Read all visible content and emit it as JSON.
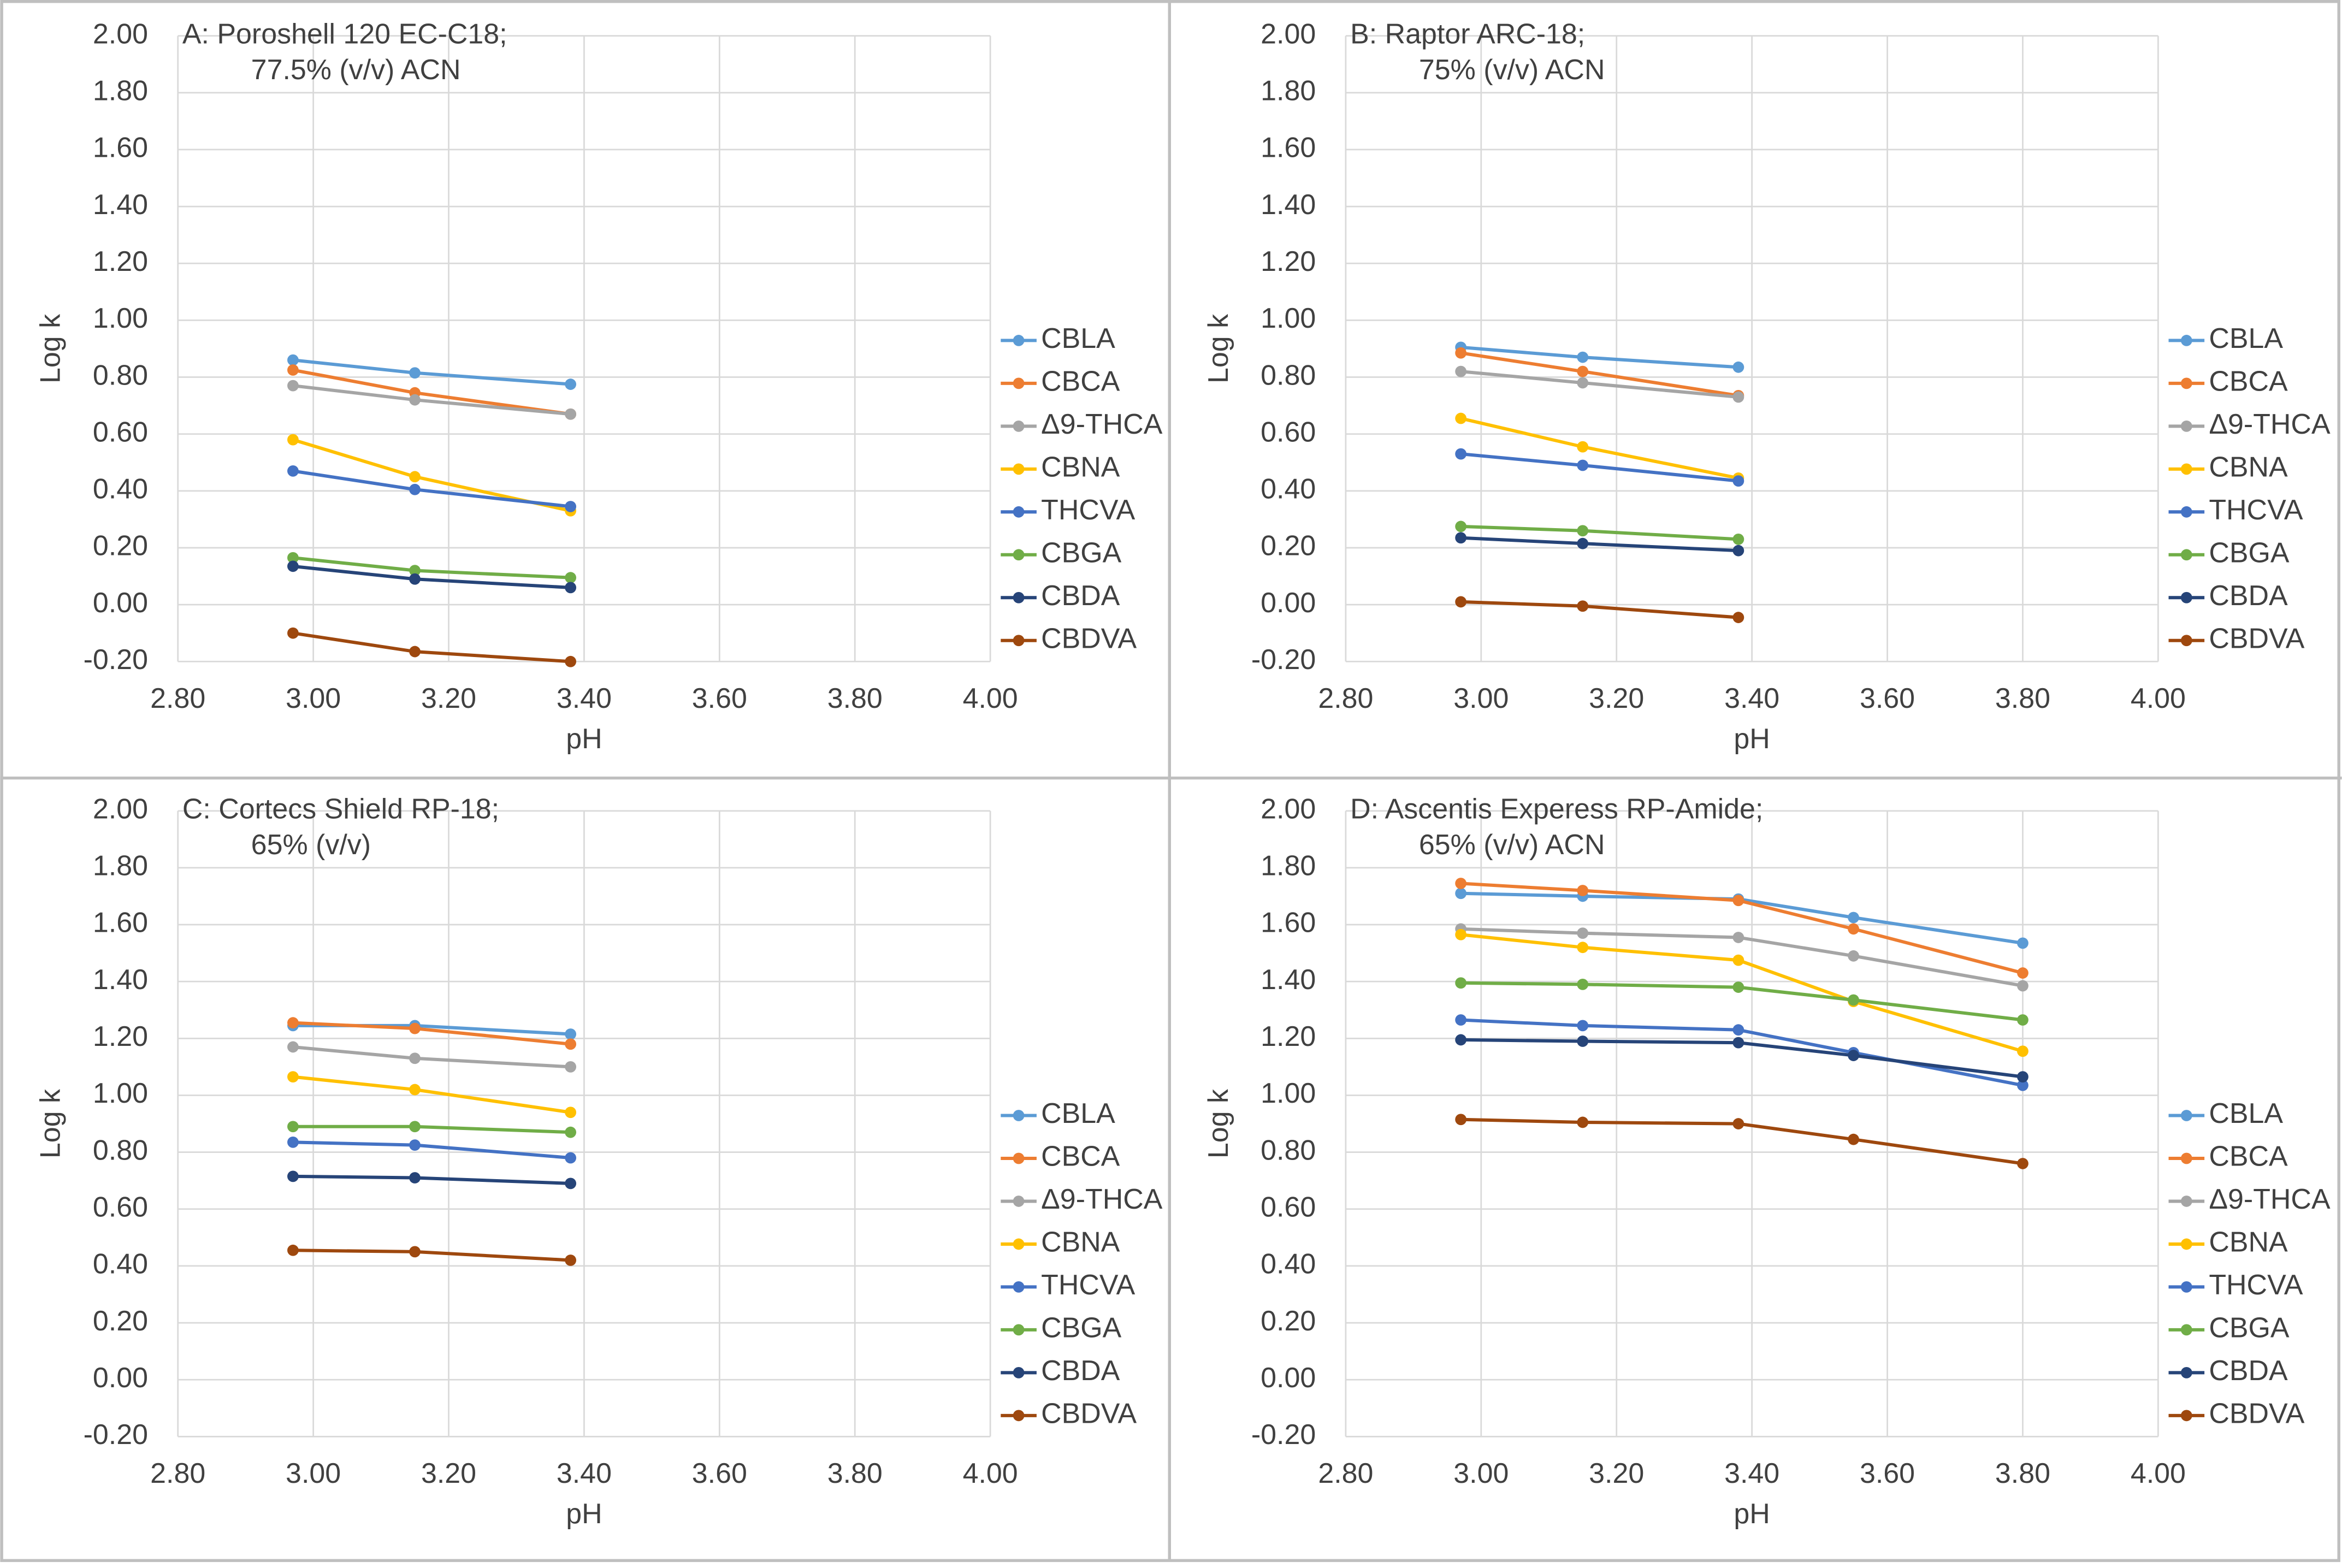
{
  "chart_data": [
    {
      "type": "line",
      "title": "A: Poroshell 120 EC-C18;",
      "subtitle": "77.5% (v/v) ACN",
      "xlabel": "pH",
      "ylabel": "Log k",
      "x": [
        2.97,
        3.15,
        3.38
      ],
      "xlim": [
        2.8,
        4.0
      ],
      "xticks": [
        {
          "value": 2.8,
          "label": "2.80"
        },
        {
          "value": 3.0,
          "label": "3.00"
        },
        {
          "value": 3.2,
          "label": "3.20"
        },
        {
          "value": 3.4,
          "label": "3.40"
        },
        {
          "value": 3.6,
          "label": "3.60"
        },
        {
          "value": 3.8,
          "label": "3.80"
        },
        {
          "value": 4.0,
          "label": "4.00"
        }
      ],
      "ylim": [
        -0.2,
        2.0
      ],
      "yticks": [
        {
          "value": -0.2,
          "label": "-0.20"
        },
        {
          "value": 0,
          "label": "0.00"
        },
        {
          "value": 0.2,
          "label": "0.20"
        },
        {
          "value": 0.4,
          "label": "0.40"
        },
        {
          "value": 0.6,
          "label": "0.60"
        },
        {
          "value": 0.8,
          "label": "0.80"
        },
        {
          "value": 1.0,
          "label": "1.00"
        },
        {
          "value": 1.2,
          "label": "1.20"
        },
        {
          "value": 1.4,
          "label": "1.40"
        },
        {
          "value": 1.6,
          "label": "1.60"
        },
        {
          "value": 1.8,
          "label": "1.80"
        },
        {
          "value": 2.0,
          "label": "2.00"
        }
      ],
      "grid": true,
      "legend": "right",
      "series": [
        {
          "name": "CBLA",
          "color": "#5b9bd5",
          "values": [
            0.86,
            0.815,
            0.775
          ]
        },
        {
          "name": "CBCA",
          "color": "#ed7d31",
          "values": [
            0.825,
            0.745,
            0.67
          ]
        },
        {
          "name": "Δ9-THCA",
          "color": "#a5a5a5",
          "values": [
            0.77,
            0.72,
            0.67
          ]
        },
        {
          "name": "CBNA",
          "color": "#ffc000",
          "values": [
            0.58,
            0.45,
            0.33
          ]
        },
        {
          "name": "THCVA",
          "color": "#4472c4",
          "values": [
            0.47,
            0.405,
            0.345
          ]
        },
        {
          "name": "CBGA",
          "color": "#70ad47",
          "values": [
            0.165,
            0.12,
            0.095
          ]
        },
        {
          "name": "CBDA",
          "color": "#264478",
          "values": [
            0.135,
            0.09,
            0.06
          ]
        },
        {
          "name": "CBDVA",
          "color": "#9e480e",
          "values": [
            -0.1,
            -0.165,
            -0.2
          ]
        }
      ]
    },
    {
      "type": "line",
      "title": "B: Raptor ARC-18;",
      "subtitle": "75% (v/v) ACN",
      "xlabel": "pH",
      "ylabel": "Log k",
      "x": [
        2.97,
        3.15,
        3.38
      ],
      "xlim": [
        2.8,
        4.0
      ],
      "xticks": [
        {
          "value": 2.8,
          "label": "2.80"
        },
        {
          "value": 3.0,
          "label": "3.00"
        },
        {
          "value": 3.2,
          "label": "3.20"
        },
        {
          "value": 3.4,
          "label": "3.40"
        },
        {
          "value": 3.6,
          "label": "3.60"
        },
        {
          "value": 3.8,
          "label": "3.80"
        },
        {
          "value": 4.0,
          "label": "4.00"
        }
      ],
      "ylim": [
        -0.2,
        2.0
      ],
      "yticks": [
        {
          "value": -0.2,
          "label": "-0.20"
        },
        {
          "value": 0,
          "label": "0.00"
        },
        {
          "value": 0.2,
          "label": "0.20"
        },
        {
          "value": 0.4,
          "label": "0.40"
        },
        {
          "value": 0.6,
          "label": "0.60"
        },
        {
          "value": 0.8,
          "label": "0.80"
        },
        {
          "value": 1.0,
          "label": "1.00"
        },
        {
          "value": 1.2,
          "label": "1.20"
        },
        {
          "value": 1.4,
          "label": "1.40"
        },
        {
          "value": 1.6,
          "label": "1.60"
        },
        {
          "value": 1.8,
          "label": "1.80"
        },
        {
          "value": 2.0,
          "label": "2.00"
        }
      ],
      "grid": true,
      "legend": "right",
      "series": [
        {
          "name": "CBLA",
          "color": "#5b9bd5",
          "values": [
            0.905,
            0.87,
            0.835
          ]
        },
        {
          "name": "CBCA",
          "color": "#ed7d31",
          "values": [
            0.885,
            0.82,
            0.735
          ]
        },
        {
          "name": "Δ9-THCA",
          "color": "#a5a5a5",
          "values": [
            0.82,
            0.78,
            0.73
          ]
        },
        {
          "name": "CBNA",
          "color": "#ffc000",
          "values": [
            0.655,
            0.555,
            0.445
          ]
        },
        {
          "name": "THCVA",
          "color": "#4472c4",
          "values": [
            0.53,
            0.49,
            0.435
          ]
        },
        {
          "name": "CBGA",
          "color": "#70ad47",
          "values": [
            0.275,
            0.26,
            0.23
          ]
        },
        {
          "name": "CBDA",
          "color": "#264478",
          "values": [
            0.235,
            0.215,
            0.19
          ]
        },
        {
          "name": "CBDVA",
          "color": "#9e480e",
          "values": [
            0.01,
            -0.005,
            -0.045
          ]
        }
      ]
    },
    {
      "type": "line",
      "title": "C: Cortecs Shield RP-18;",
      "subtitle": "65% (v/v)",
      "xlabel": "pH",
      "ylabel": "Log k",
      "x": [
        2.97,
        3.15,
        3.38
      ],
      "xlim": [
        2.8,
        4.0
      ],
      "xticks": [
        {
          "value": 2.8,
          "label": "2.80"
        },
        {
          "value": 3.0,
          "label": "3.00"
        },
        {
          "value": 3.2,
          "label": "3.20"
        },
        {
          "value": 3.4,
          "label": "3.40"
        },
        {
          "value": 3.6,
          "label": "3.60"
        },
        {
          "value": 3.8,
          "label": "3.80"
        },
        {
          "value": 4.0,
          "label": "4.00"
        }
      ],
      "ylim": [
        -0.2,
        2.0
      ],
      "yticks": [
        {
          "value": -0.2,
          "label": "-0.20"
        },
        {
          "value": 0,
          "label": "0.00"
        },
        {
          "value": 0.2,
          "label": "0.20"
        },
        {
          "value": 0.4,
          "label": "0.40"
        },
        {
          "value": 0.6,
          "label": "0.60"
        },
        {
          "value": 0.8,
          "label": "0.80"
        },
        {
          "value": 1.0,
          "label": "1.00"
        },
        {
          "value": 1.2,
          "label": "1.20"
        },
        {
          "value": 1.4,
          "label": "1.40"
        },
        {
          "value": 1.6,
          "label": "1.60"
        },
        {
          "value": 1.8,
          "label": "1.80"
        },
        {
          "value": 2.0,
          "label": "2.00"
        }
      ],
      "grid": true,
      "legend": "right",
      "series": [
        {
          "name": "CBLA",
          "color": "#5b9bd5",
          "values": [
            1.245,
            1.245,
            1.215
          ]
        },
        {
          "name": "CBCA",
          "color": "#ed7d31",
          "values": [
            1.255,
            1.235,
            1.18
          ]
        },
        {
          "name": "Δ9-THCA",
          "color": "#a5a5a5",
          "values": [
            1.17,
            1.13,
            1.1
          ]
        },
        {
          "name": "CBNA",
          "color": "#ffc000",
          "values": [
            1.065,
            1.02,
            0.94
          ]
        },
        {
          "name": "THCVA",
          "color": "#4472c4",
          "values": [
            0.835,
            0.825,
            0.78
          ]
        },
        {
          "name": "CBGA",
          "color": "#70ad47",
          "values": [
            0.89,
            0.89,
            0.87
          ]
        },
        {
          "name": "CBDA",
          "color": "#264478",
          "values": [
            0.715,
            0.71,
            0.69
          ]
        },
        {
          "name": "CBDVA",
          "color": "#9e480e",
          "values": [
            0.455,
            0.45,
            0.42
          ]
        }
      ]
    },
    {
      "type": "line",
      "title": "D: Ascentis Experess RP-Amide;",
      "subtitle": "65% (v/v) ACN",
      "xlabel": "pH",
      "ylabel": "Log k",
      "x": [
        2.97,
        3.15,
        3.38,
        3.55,
        3.8
      ],
      "xlim": [
        2.8,
        4.0
      ],
      "xticks": [
        {
          "value": 2.8,
          "label": "2.80"
        },
        {
          "value": 3.0,
          "label": "3.00"
        },
        {
          "value": 3.2,
          "label": "3.20"
        },
        {
          "value": 3.4,
          "label": "3.40"
        },
        {
          "value": 3.6,
          "label": "3.60"
        },
        {
          "value": 3.8,
          "label": "3.80"
        },
        {
          "value": 4.0,
          "label": "4.00"
        }
      ],
      "ylim": [
        -0.2,
        2.0
      ],
      "yticks": [
        {
          "value": -0.2,
          "label": "-0.20"
        },
        {
          "value": 0,
          "label": "0.00"
        },
        {
          "value": 0.2,
          "label": "0.20"
        },
        {
          "value": 0.4,
          "label": "0.40"
        },
        {
          "value": 0.6,
          "label": "0.60"
        },
        {
          "value": 0.8,
          "label": "0.80"
        },
        {
          "value": 1.0,
          "label": "1.00"
        },
        {
          "value": 1.2,
          "label": "1.20"
        },
        {
          "value": 1.4,
          "label": "1.40"
        },
        {
          "value": 1.6,
          "label": "1.60"
        },
        {
          "value": 1.8,
          "label": "1.80"
        },
        {
          "value": 2.0,
          "label": "2.00"
        }
      ],
      "grid": true,
      "legend": "right",
      "series": [
        {
          "name": "CBLA",
          "color": "#5b9bd5",
          "values": [
            1.71,
            1.7,
            1.69,
            1.625,
            1.535
          ]
        },
        {
          "name": "CBCA",
          "color": "#ed7d31",
          "values": [
            1.745,
            1.72,
            1.685,
            1.585,
            1.43
          ]
        },
        {
          "name": "Δ9-THCA",
          "color": "#a5a5a5",
          "values": [
            1.585,
            1.57,
            1.555,
            1.49,
            1.385
          ]
        },
        {
          "name": "CBNA",
          "color": "#ffc000",
          "values": [
            1.565,
            1.52,
            1.475,
            1.33,
            1.155
          ]
        },
        {
          "name": "THCVA",
          "color": "#4472c4",
          "values": [
            1.265,
            1.245,
            1.23,
            1.15,
            1.035
          ]
        },
        {
          "name": "CBGA",
          "color": "#70ad47",
          "values": [
            1.395,
            1.39,
            1.38,
            1.335,
            1.265
          ]
        },
        {
          "name": "CBDA",
          "color": "#264478",
          "values": [
            1.195,
            1.19,
            1.185,
            1.14,
            1.065
          ]
        },
        {
          "name": "CBDVA",
          "color": "#9e480e",
          "values": [
            0.915,
            0.905,
            0.9,
            0.845,
            0.76
          ]
        }
      ]
    }
  ]
}
